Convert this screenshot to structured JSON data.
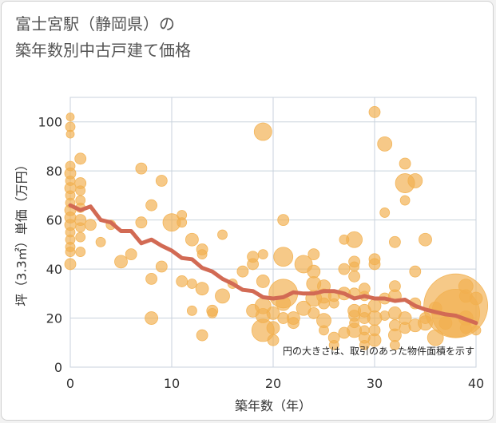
{
  "title_line1": "富士宮駅（静岡県）の",
  "title_line2": "築年数別中古戸建て価格",
  "chart_data": {
    "type": "scatter",
    "xlabel": "築年数（年）",
    "ylabel": "坪（3.3㎡）単価（万円）",
    "xlim": [
      0,
      40
    ],
    "ylim": [
      0,
      110
    ],
    "xticks": [
      0,
      10,
      20,
      30,
      40
    ],
    "yticks": [
      0,
      20,
      40,
      60,
      80,
      100
    ],
    "grid": true,
    "annotation": "円の大きさは、取引のあった物件面積を示す",
    "colors": {
      "bubble": "#f2b04f",
      "line": "#d26a54",
      "grid": "#c8d2dc"
    },
    "trend_line": [
      [
        0,
        66
      ],
      [
        1,
        64
      ],
      [
        2,
        65.5
      ],
      [
        3,
        60
      ],
      [
        4,
        59
      ],
      [
        5,
        55.5
      ],
      [
        6,
        55.5
      ],
      [
        7,
        50.5
      ],
      [
        8,
        52
      ],
      [
        9,
        49.5
      ],
      [
        10,
        47.5
      ],
      [
        11,
        44.5
      ],
      [
        12,
        44
      ],
      [
        13,
        40.5
      ],
      [
        14,
        39
      ],
      [
        15,
        36
      ],
      [
        16,
        34
      ],
      [
        17,
        31.5
      ],
      [
        18,
        31
      ],
      [
        19,
        28.5
      ],
      [
        20,
        28
      ],
      [
        21,
        28.5
      ],
      [
        22,
        30.5
      ],
      [
        23,
        30
      ],
      [
        24,
        30
      ],
      [
        25,
        31
      ],
      [
        26,
        31
      ],
      [
        27,
        30
      ],
      [
        28,
        28
      ],
      [
        29,
        29
      ],
      [
        30,
        28
      ],
      [
        31,
        28
      ],
      [
        32,
        27
      ],
      [
        33,
        27.5
      ],
      [
        34,
        25
      ],
      [
        35,
        23.5
      ],
      [
        36,
        22.5
      ],
      [
        37,
        21.5
      ],
      [
        38,
        21
      ],
      [
        39,
        19.5
      ],
      [
        40,
        18
      ]
    ],
    "points": [
      [
        0,
        102,
        5
      ],
      [
        0,
        98,
        6
      ],
      [
        0,
        95,
        5
      ],
      [
        0,
        82,
        6
      ],
      [
        0,
        79,
        7
      ],
      [
        0,
        76,
        6
      ],
      [
        0,
        73,
        7
      ],
      [
        0,
        70,
        6
      ],
      [
        0,
        67,
        6
      ],
      [
        0,
        64,
        7
      ],
      [
        0,
        61,
        7
      ],
      [
        0,
        58,
        7
      ],
      [
        0,
        55,
        6
      ],
      [
        0,
        52,
        6
      ],
      [
        0,
        49,
        6
      ],
      [
        0,
        47,
        6
      ],
      [
        0,
        42,
        7
      ],
      [
        1,
        85,
        7
      ],
      [
        1,
        75,
        7
      ],
      [
        1,
        72,
        6
      ],
      [
        1,
        68,
        6
      ],
      [
        1,
        65,
        6
      ],
      [
        1,
        60,
        7
      ],
      [
        1,
        57,
        6
      ],
      [
        1,
        53,
        6
      ],
      [
        1,
        47,
        6
      ],
      [
        2,
        58,
        7
      ],
      [
        3,
        51,
        6
      ],
      [
        4,
        58,
        6
      ],
      [
        5,
        43,
        8
      ],
      [
        6,
        46,
        7
      ],
      [
        7,
        81,
        7
      ],
      [
        7,
        59,
        7
      ],
      [
        8,
        66,
        7
      ],
      [
        8,
        36,
        7
      ],
      [
        8,
        20,
        8
      ],
      [
        9,
        76,
        7
      ],
      [
        9,
        41,
        7
      ],
      [
        10,
        59,
        11
      ],
      [
        11,
        62,
        6
      ],
      [
        11,
        59,
        6
      ],
      [
        11,
        35,
        7
      ],
      [
        12,
        52,
        8
      ],
      [
        12,
        34,
        6
      ],
      [
        12,
        23,
        6
      ],
      [
        13,
        48,
        7
      ],
      [
        13,
        46,
        6
      ],
      [
        13,
        32,
        8
      ],
      [
        13,
        13,
        7
      ],
      [
        14,
        23,
        7
      ],
      [
        14,
        22,
        6
      ],
      [
        15,
        54,
        6
      ],
      [
        15,
        29,
        9
      ],
      [
        16,
        34,
        6
      ],
      [
        17,
        39,
        7
      ],
      [
        18,
        42,
        7
      ],
      [
        18,
        45,
        7
      ],
      [
        18,
        23,
        8
      ],
      [
        19,
        96,
        11
      ],
      [
        19,
        46,
        6
      ],
      [
        19,
        35,
        8
      ],
      [
        19,
        25,
        10
      ],
      [
        19,
        21,
        9
      ],
      [
        19,
        15,
        14
      ],
      [
        20,
        22,
        8
      ],
      [
        20,
        16,
        8
      ],
      [
        20,
        11,
        7
      ],
      [
        21,
        60,
        7
      ],
      [
        21,
        45,
        12
      ],
      [
        21,
        30,
        18
      ],
      [
        21,
        26,
        9
      ],
      [
        21,
        20,
        7
      ],
      [
        22,
        20,
        8
      ],
      [
        22,
        18,
        7
      ],
      [
        23,
        42,
        11
      ],
      [
        23,
        24,
        9
      ],
      [
        24,
        46,
        7
      ],
      [
        24,
        39,
        8
      ],
      [
        24,
        34,
        9
      ],
      [
        24,
        28,
        10
      ],
      [
        24,
        22,
        7
      ],
      [
        25,
        33,
        8
      ],
      [
        25,
        29,
        9
      ],
      [
        25,
        26,
        7
      ],
      [
        25,
        19,
        9
      ],
      [
        25,
        15,
        6
      ],
      [
        26,
        29,
        7
      ],
      [
        26,
        26,
        6
      ],
      [
        26,
        12,
        7
      ],
      [
        26,
        9,
        6
      ],
      [
        27,
        52,
        6
      ],
      [
        27,
        40,
        7
      ],
      [
        27,
        30,
        8
      ],
      [
        27,
        14,
        7
      ],
      [
        28,
        52,
        10
      ],
      [
        28,
        43,
        7
      ],
      [
        28,
        41,
        6
      ],
      [
        28,
        37,
        7
      ],
      [
        28,
        30,
        7
      ],
      [
        28,
        23,
        8
      ],
      [
        28,
        21,
        7
      ],
      [
        28,
        18,
        6
      ],
      [
        28,
        15,
        9
      ],
      [
        29,
        32,
        7
      ],
      [
        29,
        29,
        6
      ],
      [
        29,
        23,
        8
      ],
      [
        29,
        20,
        7
      ],
      [
        29,
        15,
        6
      ],
      [
        29,
        12,
        7
      ],
      [
        29,
        9,
        6
      ],
      [
        30,
        104,
        7
      ],
      [
        30,
        44,
        7
      ],
      [
        30,
        42,
        7
      ],
      [
        30,
        25,
        8
      ],
      [
        30,
        20,
        9
      ],
      [
        30,
        15,
        7
      ],
      [
        30,
        11,
        8
      ],
      [
        31,
        91,
        9
      ],
      [
        31,
        63,
        6
      ],
      [
        31,
        28,
        7
      ],
      [
        31,
        21,
        6
      ],
      [
        32,
        51,
        7
      ],
      [
        32,
        33,
        7
      ],
      [
        32,
        29,
        8
      ],
      [
        32,
        22,
        8
      ],
      [
        32,
        17,
        7
      ],
      [
        32,
        13,
        8
      ],
      [
        32,
        9,
        6
      ],
      [
        33,
        83,
        7
      ],
      [
        33,
        75,
        12
      ],
      [
        33,
        68,
        6
      ],
      [
        33,
        20,
        8
      ],
      [
        33,
        16,
        7
      ],
      [
        34,
        76,
        9
      ],
      [
        34,
        39,
        7
      ],
      [
        34,
        26,
        7
      ],
      [
        34,
        17,
        8
      ],
      [
        35,
        52,
        8
      ],
      [
        35,
        20,
        7
      ],
      [
        35,
        18,
        9
      ],
      [
        36,
        12,
        10
      ],
      [
        36,
        24,
        8
      ],
      [
        37,
        18,
        8
      ],
      [
        38,
        25,
        40
      ],
      [
        38,
        22,
        30
      ],
      [
        39,
        33,
        9
      ],
      [
        39,
        29,
        8
      ],
      [
        39,
        20,
        9
      ],
      [
        39,
        16,
        7
      ],
      [
        40,
        28,
        8
      ],
      [
        40,
        15,
        6
      ]
    ]
  }
}
